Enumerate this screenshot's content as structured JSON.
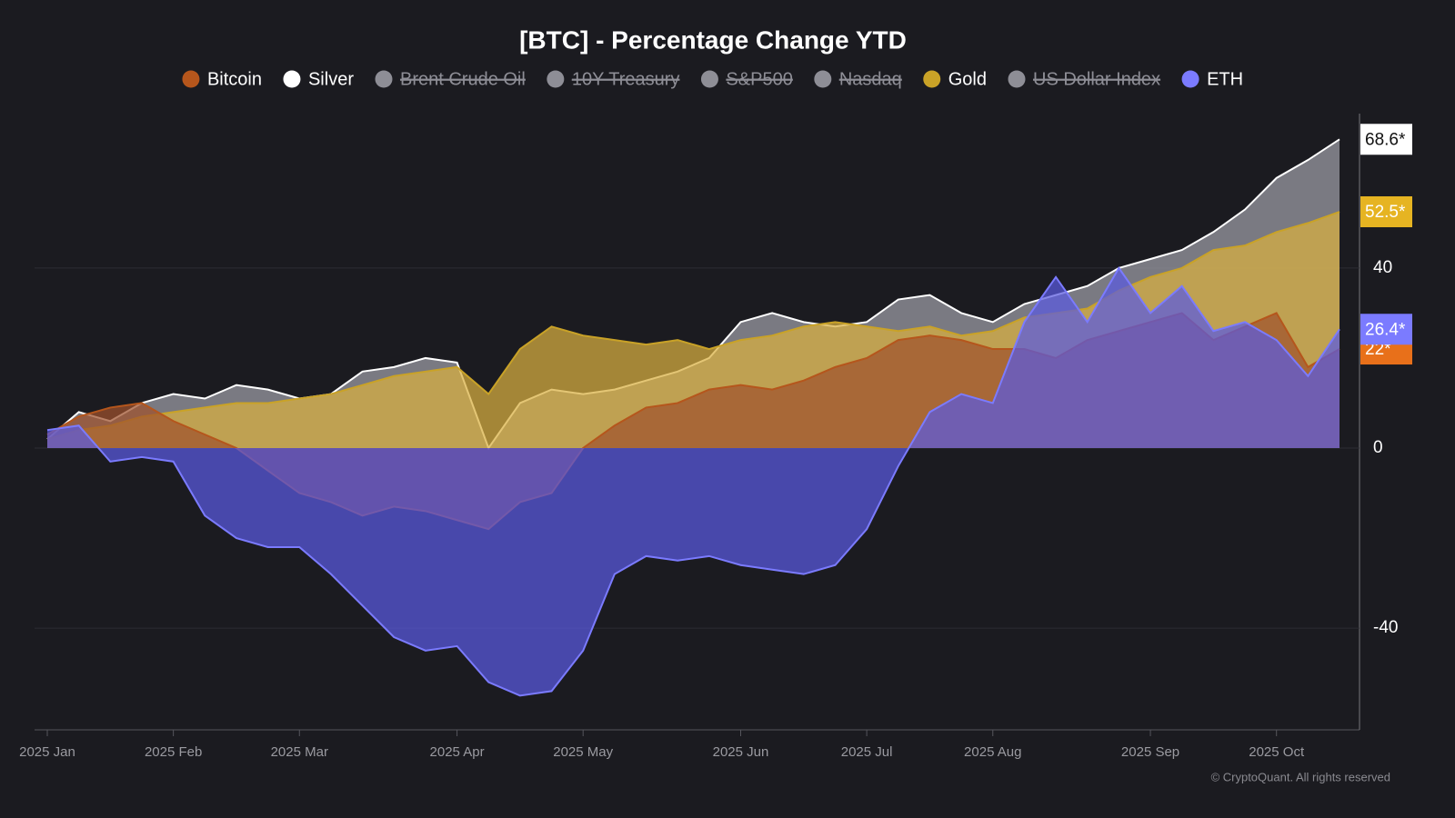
{
  "chart_data": {
    "type": "area",
    "title": "[BTC] - Percentage Change YTD",
    "credit": "© CryptoQuant. All rights reserved",
    "categories": [
      "2025 Jan",
      null,
      null,
      null,
      "2025 Feb",
      null,
      null,
      null,
      "2025 Mar",
      null,
      null,
      null,
      null,
      "2025 Apr",
      null,
      null,
      null,
      "2025 May",
      null,
      null,
      null,
      null,
      "2025 Jun",
      null,
      null,
      null,
      "2025 Jul",
      null,
      null,
      null,
      "2025 Aug",
      null,
      null,
      null,
      null,
      "2025 Sep",
      null,
      null,
      null,
      "2025 Oct",
      null,
      null
    ],
    "ylim": [
      -62.6,
      73.3
    ],
    "yticks": [
      -40,
      0,
      40
    ],
    "grid": true,
    "series": [
      {
        "name": "Bitcoin",
        "color": "#b5561c",
        "area_color": "#a0522d",
        "end_label": "22*",
        "label_color": "#e8701a",
        "values": [
          3,
          7,
          9,
          10,
          6,
          3,
          0,
          -5,
          -10,
          -12,
          -15,
          -13,
          -14,
          -16,
          -18,
          -12,
          -10,
          0,
          5,
          9,
          10,
          13,
          14,
          13,
          15,
          18,
          20,
          24,
          25,
          24,
          22,
          22,
          20,
          24,
          26,
          28,
          30,
          24,
          27,
          30,
          18,
          22
        ]
      },
      {
        "name": "Silver",
        "color": "#ffffff",
        "area_color": "#a0a0a8",
        "end_label": "68.6*",
        "label_color": "#ffffff",
        "values": [
          2,
          8,
          6,
          10,
          12,
          11,
          14,
          13,
          11,
          12,
          17,
          18,
          20,
          19,
          0,
          10,
          13,
          12,
          13,
          15,
          17,
          20,
          28,
          30,
          28,
          27,
          28,
          33,
          34,
          30,
          28,
          32,
          34,
          36,
          40,
          42,
          44,
          48,
          53,
          60,
          64,
          68.6
        ]
      },
      {
        "name": "Brent Crude Oil",
        "color": "#8e8e96",
        "hidden": true
      },
      {
        "name": "10Y Treasury",
        "color": "#8e8e96",
        "hidden": true
      },
      {
        "name": "S&P500",
        "color": "#8e8e96",
        "hidden": true
      },
      {
        "name": "Nasdaq",
        "color": "#8e8e96",
        "hidden": true
      },
      {
        "name": "Gold",
        "color": "#c9a227",
        "area_color": "#d9b040",
        "end_label": "52.5*",
        "label_color": "#e6b422",
        "values": [
          2,
          4,
          5,
          7,
          8,
          9,
          10,
          10,
          11,
          12,
          14,
          16,
          17,
          18,
          12,
          22,
          27,
          25,
          24,
          23,
          24,
          22,
          24,
          25,
          27,
          28,
          27,
          26,
          27,
          25,
          26,
          29,
          30,
          31,
          35,
          38,
          40,
          44,
          45,
          48,
          50,
          52.5
        ]
      },
      {
        "name": "US Dollar Index",
        "color": "#8e8e96",
        "hidden": true
      },
      {
        "name": "ETH",
        "color": "#7b7bff",
        "area_color": "#5a5ae0",
        "end_label": "26.4*",
        "label_color": "#7b7bff",
        "values": [
          4,
          5,
          -3,
          -2,
          -3,
          -15,
          -20,
          -22,
          -22,
          -28,
          -35,
          -42,
          -45,
          -44,
          -52,
          -55,
          -54,
          -45,
          -28,
          -24,
          -25,
          -24,
          -26,
          -27,
          -28,
          -26,
          -18,
          -4,
          8,
          12,
          10,
          28,
          38,
          28,
          40,
          30,
          36,
          26,
          28,
          24,
          16,
          26.4
        ]
      }
    ]
  }
}
